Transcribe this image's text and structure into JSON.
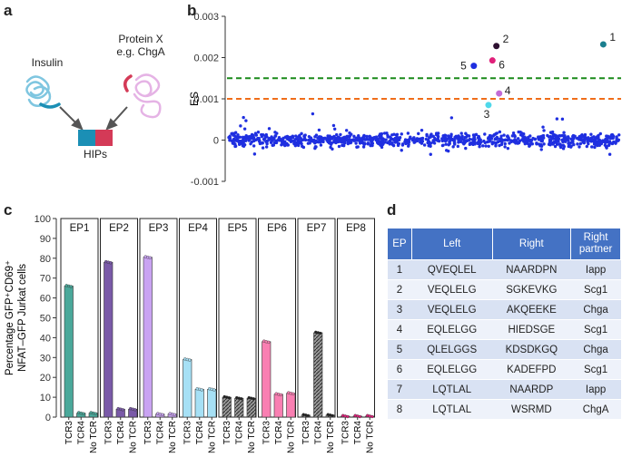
{
  "panels": {
    "a": "a",
    "b": "b",
    "c": "c",
    "d": "d"
  },
  "panel_a": {
    "insulin_label": "Insulin",
    "protein_label_line1": "Protein X",
    "protein_label_line2": "e.g. ChgA",
    "hips_label": "HIPs",
    "colors": {
      "insulin": "#1b8fb5",
      "protein": "#d43a57"
    }
  },
  "chart_data": [
    {
      "type": "scatter",
      "panel": "b",
      "ylabel": "ES",
      "ylim": [
        -0.001,
        0.003
      ],
      "yticks": [
        "0.003",
        "0.002",
        "0.001",
        "0",
        "-0.001"
      ],
      "thresholds": [
        {
          "value": 0.0015,
          "color": "#1a8a1a",
          "style": "dashed"
        },
        {
          "value": 0.001,
          "color": "#f06d1a",
          "style": "dashed"
        }
      ],
      "background_points": {
        "count": 1000,
        "mean": 0.0,
        "sd": 0.00012,
        "color": "#1f2fe0"
      },
      "highlighted": [
        {
          "label": "1",
          "x": 0.955,
          "y": 0.00232,
          "color": "#1a7f8f"
        },
        {
          "label": "2",
          "x": 0.685,
          "y": 0.00228,
          "color": "#2e1131"
        },
        {
          "label": "3",
          "x": 0.665,
          "y": 0.00085,
          "color": "#4fd8ea"
        },
        {
          "label": "4",
          "x": 0.692,
          "y": 0.00113,
          "color": "#c26bd6"
        },
        {
          "label": "5",
          "x": 0.628,
          "y": 0.0018,
          "color": "#1f2fe0"
        },
        {
          "label": "6",
          "x": 0.675,
          "y": 0.00193,
          "color": "#e0207a"
        }
      ]
    },
    {
      "type": "bar",
      "panel": "c",
      "ylabel_line1": "Percentage GFP⁺CD69⁺",
      "ylabel_line2": "NFAT–GFP Jurkat cells",
      "ylim": [
        0,
        100
      ],
      "yticks": [
        "0",
        "10",
        "20",
        "30",
        "40",
        "50",
        "60",
        "70",
        "80",
        "90",
        "100"
      ],
      "categories": [
        "TCR3",
        "TCR4",
        "No TCR"
      ],
      "groups": [
        {
          "name": "EP1",
          "values": [
            66,
            2,
            2
          ],
          "color": "#4aa89a",
          "hatched": false
        },
        {
          "name": "EP2",
          "values": [
            78,
            4,
            4
          ],
          "color": "#7a5aa8",
          "hatched": false
        },
        {
          "name": "EP3",
          "values": [
            80.5,
            1.5,
            1.5
          ],
          "color": "#c9a3f2",
          "hatched": false
        },
        {
          "name": "EP4",
          "values": [
            29,
            14,
            14
          ],
          "color": "#a6e0f5",
          "hatched": false
        },
        {
          "name": "EP5",
          "values": [
            10,
            9.5,
            9.5
          ],
          "color": "#7a7a7a",
          "hatched": true
        },
        {
          "name": "EP6",
          "values": [
            38,
            11.5,
            12
          ],
          "color": "#f97fb2",
          "hatched": false
        },
        {
          "name": "EP7",
          "values": [
            1,
            42.5,
            1
          ],
          "color": "#7a7a7a",
          "hatched": true
        },
        {
          "name": "EP8",
          "values": [
            0.5,
            0.5,
            0.5
          ],
          "color": "#e0207a",
          "hatched": false
        }
      ]
    }
  ],
  "table_d": {
    "headers": [
      "EP",
      "Left",
      "Right",
      "Right partner"
    ],
    "header_partner_line1": "Right",
    "header_partner_line2": "partner",
    "rows": [
      [
        "1",
        "QVEQLEL",
        "NAARDPN",
        "Iapp"
      ],
      [
        "2",
        "VEQLELG",
        "SGKEVKG",
        "Scg1"
      ],
      [
        "3",
        "VEQLELG",
        "AKQEEKE",
        "Chga"
      ],
      [
        "4",
        "EQLELGG",
        "HIEDSGE",
        "Scg1"
      ],
      [
        "5",
        "QLELGGS",
        "KDSDKGQ",
        "Chga"
      ],
      [
        "6",
        "EQLELGG",
        "KADEFPD",
        "Scg1"
      ],
      [
        "7",
        "LQTLAL",
        "NAARDP",
        "Iapp"
      ],
      [
        "8",
        "LQTLAL",
        "WSRMD",
        "ChgA"
      ]
    ]
  }
}
